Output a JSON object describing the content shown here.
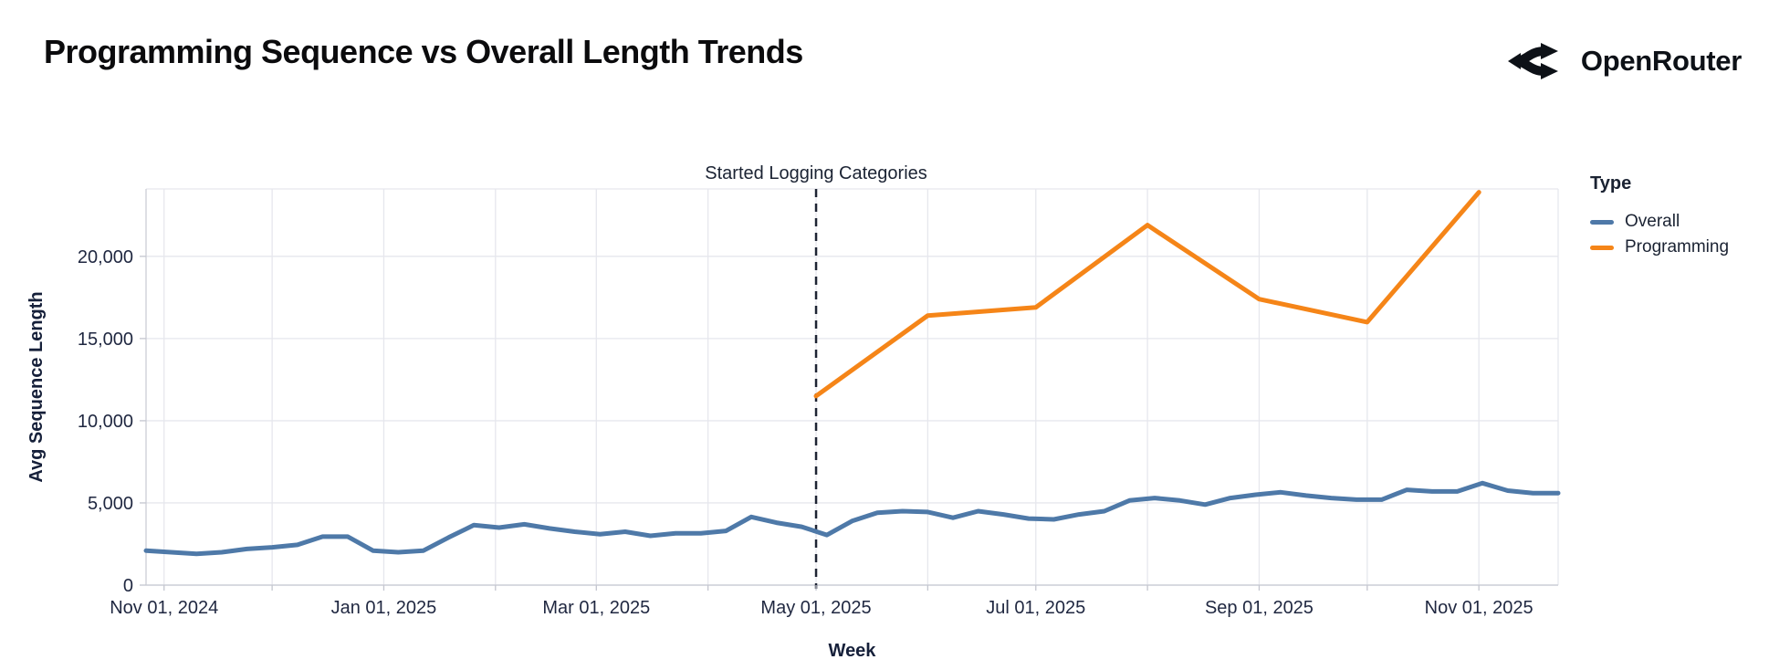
{
  "header": {
    "title": "Programming Sequence vs Overall Length Trends",
    "brand": "OpenRouter"
  },
  "chart_data": {
    "type": "line",
    "title": "Programming Sequence vs Overall Length Trends",
    "xlabel": "Week",
    "ylabel": "Avg Sequence Length",
    "x_domain": [
      "2024-10-27",
      "2025-11-23"
    ],
    "ylim": [
      0,
      24100
    ],
    "grid": true,
    "y_ticks": [
      {
        "value": 0,
        "label": "0"
      },
      {
        "value": 5000,
        "label": "5,000"
      },
      {
        "value": 10000,
        "label": "10,000"
      },
      {
        "value": 15000,
        "label": "15,000"
      },
      {
        "value": 20000,
        "label": "20,000"
      }
    ],
    "x_ticks": [
      {
        "date": "2024-11-01",
        "label": "Nov 01, 2024"
      },
      {
        "date": "2025-01-01",
        "label": "Jan 01, 2025"
      },
      {
        "date": "2025-03-01",
        "label": "Mar 01, 2025"
      },
      {
        "date": "2025-05-01",
        "label": "May 01, 2025"
      },
      {
        "date": "2025-07-01",
        "label": "Jul 01, 2025"
      },
      {
        "date": "2025-09-01",
        "label": "Sep 01, 2025"
      },
      {
        "date": "2025-11-01",
        "label": "Nov 01, 2025"
      }
    ],
    "month_gridlines": [
      "2024-11-01",
      "2024-12-01",
      "2025-01-01",
      "2025-02-01",
      "2025-03-01",
      "2025-04-01",
      "2025-05-01",
      "2025-06-01",
      "2025-07-01",
      "2025-08-01",
      "2025-09-01",
      "2025-10-01",
      "2025-11-01"
    ],
    "annotation": {
      "label": "Started Logging Categories",
      "date": "2025-05-01"
    },
    "legend": {
      "title": "Type",
      "position": "right",
      "items": [
        {
          "label": "Overall",
          "color": "#4e79a8"
        },
        {
          "label": "Programming",
          "color": "#f58518"
        }
      ]
    },
    "series": [
      {
        "name": "Overall",
        "color": "#4e79a8",
        "points": [
          [
            "2024-10-27",
            2100
          ],
          [
            "2024-11-03",
            2000
          ],
          [
            "2024-11-10",
            1900
          ],
          [
            "2024-11-17",
            2000
          ],
          [
            "2024-11-24",
            2200
          ],
          [
            "2024-12-01",
            2300
          ],
          [
            "2024-12-08",
            2450
          ],
          [
            "2024-12-15",
            2950
          ],
          [
            "2024-12-22",
            2950
          ],
          [
            "2024-12-29",
            2100
          ],
          [
            "2025-01-05",
            2000
          ],
          [
            "2025-01-12",
            2100
          ],
          [
            "2025-01-19",
            2900
          ],
          [
            "2025-01-26",
            3650
          ],
          [
            "2025-02-02",
            3500
          ],
          [
            "2025-02-09",
            3700
          ],
          [
            "2025-02-16",
            3450
          ],
          [
            "2025-02-23",
            3250
          ],
          [
            "2025-03-02",
            3100
          ],
          [
            "2025-03-09",
            3250
          ],
          [
            "2025-03-16",
            3000
          ],
          [
            "2025-03-23",
            3150
          ],
          [
            "2025-03-30",
            3150
          ],
          [
            "2025-04-06",
            3300
          ],
          [
            "2025-04-13",
            4150
          ],
          [
            "2025-04-20",
            3800
          ],
          [
            "2025-04-27",
            3550
          ],
          [
            "2025-05-04",
            3050
          ],
          [
            "2025-05-11",
            3900
          ],
          [
            "2025-05-18",
            4400
          ],
          [
            "2025-05-25",
            4500
          ],
          [
            "2025-06-01",
            4450
          ],
          [
            "2025-06-08",
            4100
          ],
          [
            "2025-06-15",
            4500
          ],
          [
            "2025-06-22",
            4300
          ],
          [
            "2025-06-29",
            4050
          ],
          [
            "2025-07-06",
            4000
          ],
          [
            "2025-07-13",
            4300
          ],
          [
            "2025-07-20",
            4500
          ],
          [
            "2025-07-27",
            5150
          ],
          [
            "2025-08-03",
            5300
          ],
          [
            "2025-08-10",
            5150
          ],
          [
            "2025-08-17",
            4900
          ],
          [
            "2025-08-24",
            5300
          ],
          [
            "2025-08-31",
            5500
          ],
          [
            "2025-09-07",
            5650
          ],
          [
            "2025-09-14",
            5450
          ],
          [
            "2025-09-21",
            5300
          ],
          [
            "2025-09-28",
            5200
          ],
          [
            "2025-10-05",
            5200
          ],
          [
            "2025-10-12",
            5800
          ],
          [
            "2025-10-19",
            5700
          ],
          [
            "2025-10-26",
            5700
          ],
          [
            "2025-11-02",
            6200
          ],
          [
            "2025-11-09",
            5750
          ],
          [
            "2025-11-16",
            5600
          ],
          [
            "2025-11-23",
            5600
          ]
        ]
      },
      {
        "name": "Programming",
        "color": "#f58518",
        "points": [
          [
            "2025-05-01",
            11500
          ],
          [
            "2025-06-01",
            16400
          ],
          [
            "2025-07-01",
            16900
          ],
          [
            "2025-08-01",
            21900
          ],
          [
            "2025-09-01",
            17400
          ],
          [
            "2025-10-01",
            16000
          ],
          [
            "2025-11-01",
            23900
          ]
        ]
      }
    ]
  }
}
